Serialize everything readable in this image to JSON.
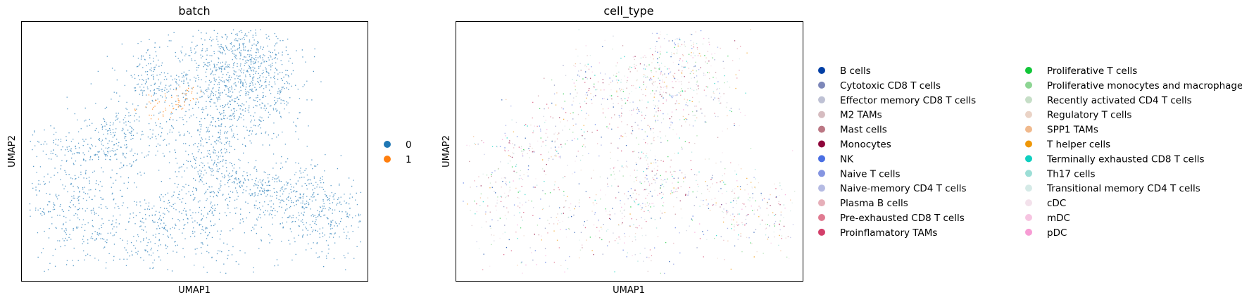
{
  "chart_data": [
    {
      "type": "scatter",
      "title": "batch",
      "xlabel": "UMAP1",
      "ylabel": "UMAP2",
      "grid": false,
      "legend_position": "right",
      "series": [
        {
          "name": "0",
          "color": "#1f77b4"
        },
        {
          "name": "1",
          "color": "#ff7f0e"
        }
      ],
      "x_ticks": [],
      "y_ticks": []
    },
    {
      "type": "scatter",
      "title": "cell_type",
      "xlabel": "UMAP1",
      "ylabel": "UMAP2",
      "grid": false,
      "legend_position": "right",
      "series": [
        {
          "name": "B cells",
          "color": "#023fa5"
        },
        {
          "name": "Cytotoxic CD8 T cells",
          "color": "#7d87b9"
        },
        {
          "name": "Effector memory CD8 T cells",
          "color": "#bec1d4"
        },
        {
          "name": "M2 TAMs",
          "color": "#d6bcc0"
        },
        {
          "name": "Mast cells",
          "color": "#bb7784"
        },
        {
          "name": "Monocytes",
          "color": "#8e063b"
        },
        {
          "name": "NK",
          "color": "#4a6fe3"
        },
        {
          "name": "Naive T cells",
          "color": "#8595e1"
        },
        {
          "name": "Naive-memory CD4 T cells",
          "color": "#b5bbe3"
        },
        {
          "name": "Plasma B cells",
          "color": "#e6afb9"
        },
        {
          "name": "Pre-exhausted CD8 T cells",
          "color": "#e07b91"
        },
        {
          "name": "Proinflamatory TAMs",
          "color": "#d33f6a"
        },
        {
          "name": "Proliferative T cells",
          "color": "#11c638"
        },
        {
          "name": "Proliferative monocytes and macrophages",
          "color": "#8dd593"
        },
        {
          "name": "Recently activated CD4 T cells",
          "color": "#c6dec7"
        },
        {
          "name": "Regulatory T cells",
          "color": "#ead3c6"
        },
        {
          "name": "SPP1 TAMs",
          "color": "#f0b98d"
        },
        {
          "name": "T helper cells",
          "color": "#ef9708"
        },
        {
          "name": "Terminally exhausted CD8 T cells",
          "color": "#0fcfc0"
        },
        {
          "name": "Th17 cells",
          "color": "#9cded6"
        },
        {
          "name": "Transitional memory CD4 T cells",
          "color": "#d5eae7"
        },
        {
          "name": "cDC",
          "color": "#f3e1eb"
        },
        {
          "name": "mDC",
          "color": "#f6c4e1"
        },
        {
          "name": "pDC",
          "color": "#f79cd4"
        }
      ],
      "x_ticks": [],
      "y_ticks": []
    }
  ]
}
